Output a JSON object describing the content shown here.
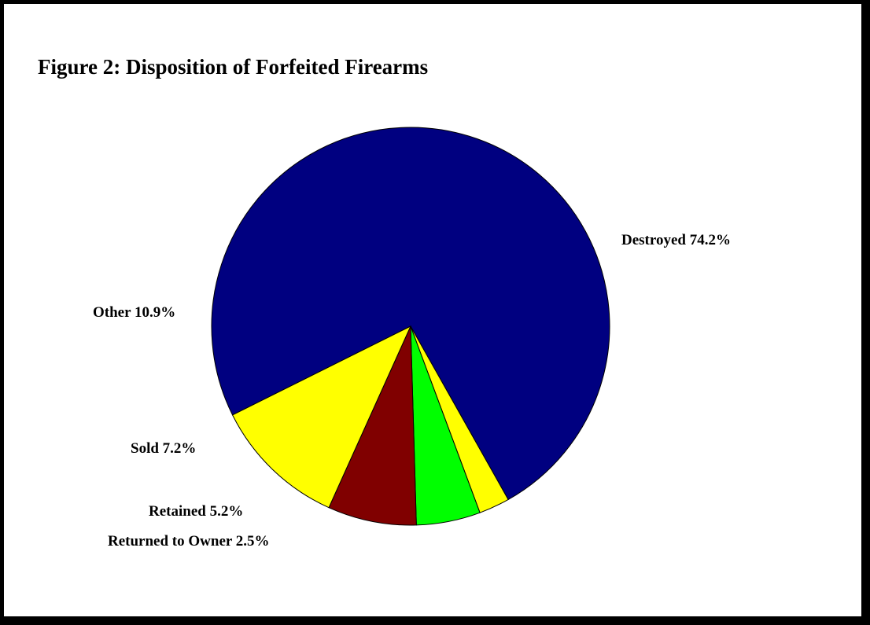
{
  "chart_data": {
    "type": "pie",
    "title": "Figure 2:  Disposition of Forfeited Firearms",
    "slices": [
      {
        "name": "Destroyed",
        "value": 74.2,
        "label": "Destroyed 74.2%",
        "color": "#000080"
      },
      {
        "name": "Returned to Owner",
        "value": 2.5,
        "label": "Returned to Owner 2.5%",
        "color": "#ffff00"
      },
      {
        "name": "Retained",
        "value": 5.2,
        "label": "Retained 5.2%",
        "color": "#00ff00"
      },
      {
        "name": "Sold",
        "value": 7.2,
        "label": "Sold 7.2%",
        "color": "#800000"
      },
      {
        "name": "Other",
        "value": 10.9,
        "label": "Other 10.9%",
        "color": "#ffff00"
      }
    ],
    "legend": "none"
  }
}
